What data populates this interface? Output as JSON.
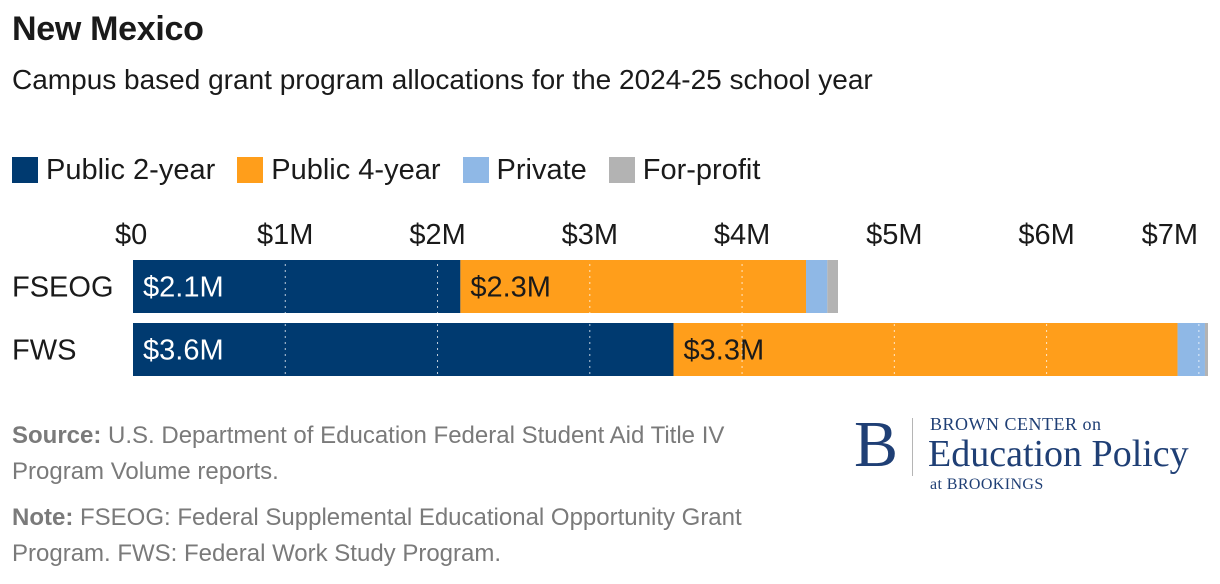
{
  "title": "New Mexico",
  "subtitle": "Campus based grant program allocations for the 2024-25 school year",
  "colors": {
    "public_2_year": "#003a70",
    "public_4_year": "#ff9e1b",
    "private": "#8fb8e6",
    "for_profit": "#b3b3b3",
    "gridline": "#ffffff"
  },
  "legend": [
    {
      "label": "Public 2-year",
      "color": "#003a70"
    },
    {
      "label": "Public 4-year",
      "color": "#ff9e1b"
    },
    {
      "label": "Private",
      "color": "#8fb8e6"
    },
    {
      "label": "For-profit",
      "color": "#b3b3b3"
    }
  ],
  "chart_data": {
    "type": "bar",
    "orientation": "horizontal",
    "stacked": true,
    "categories": [
      "FSEOG",
      "FWS"
    ],
    "series": [
      {
        "name": "Public 2-year",
        "values": [
          2.15,
          3.55
        ],
        "labels": [
          "$2.1M",
          "$3.6M"
        ],
        "color": "#003a70",
        "label_color": "#ffffff"
      },
      {
        "name": "Public 4-year",
        "values": [
          2.27,
          3.31
        ],
        "labels": [
          "$2.3M",
          "$3.3M"
        ],
        "color": "#ff9e1b",
        "label_color": "#1a1a1a"
      },
      {
        "name": "Private",
        "values": [
          0.14,
          0.18
        ],
        "labels": [
          "",
          ""
        ],
        "color": "#8fb8e6"
      },
      {
        "name": "For-profit",
        "values": [
          0.07,
          0.02
        ],
        "labels": [
          "",
          ""
        ],
        "color": "#b3b3b3"
      }
    ],
    "ticks": [
      "$0",
      "$1M",
      "$2M",
      "$3M",
      "$4M",
      "$5M",
      "$6M",
      "$7M"
    ],
    "tick_values": [
      0,
      1,
      2,
      3,
      4,
      5,
      6,
      7
    ],
    "xlim": [
      0,
      7.06
    ],
    "xaxis_position": "top",
    "grid": "dotted vertical"
  },
  "source": {
    "label": "Source:",
    "text": " U.S. Department of Education Federal Student Aid Title IV Program Volume reports."
  },
  "note": {
    "label": "Note:",
    "text": " FSEOG: Federal Supplemental Educational Opportunity Grant Program. FWS: Federal Work Study Program."
  },
  "logo": {
    "letter": "B",
    "line1": "BROWN CENTER on",
    "line2": "Education Policy",
    "line3": "at BROOKINGS"
  }
}
